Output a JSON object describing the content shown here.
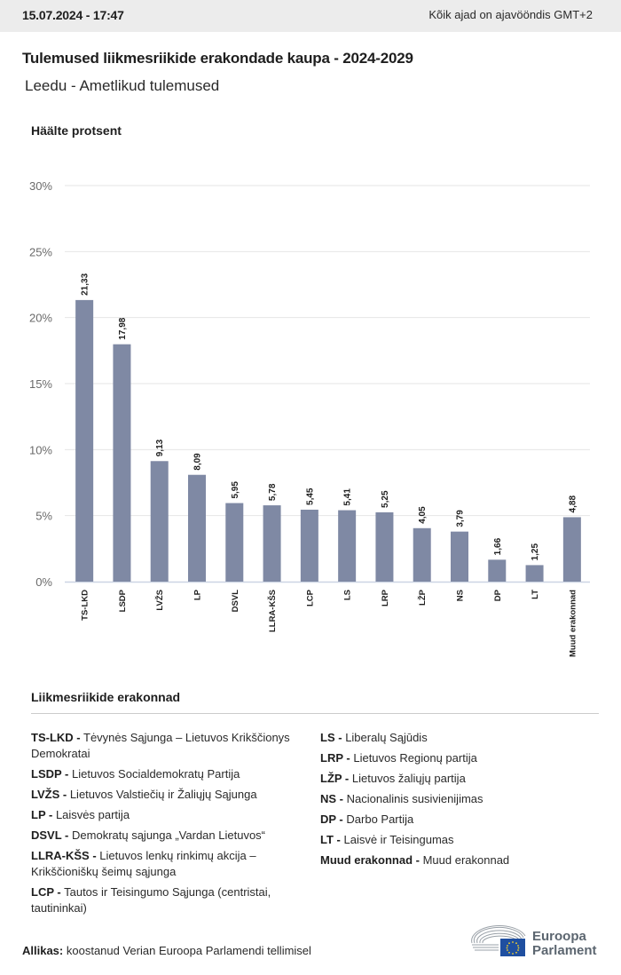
{
  "header": {
    "datetime": "15.07.2024 - 17:47",
    "timezone_note": "Kõik ajad on ajavööndis GMT+2"
  },
  "title": "Tulemused liikmesriikide erakondade kaupa - 2024-2029",
  "subtitle": "Leedu - Ametlikud tulemused",
  "colors": {
    "bar": "#7f89a4",
    "gridline": "#e6e6e6",
    "baseline": "#ccd4e4",
    "header_bg": "#ececec"
  },
  "chart_data": {
    "type": "bar",
    "title": "",
    "ylabel": "Häälte protsent",
    "xlabel": "",
    "ylim": [
      0,
      30
    ],
    "yticks": [
      0,
      5,
      10,
      15,
      20,
      25,
      30
    ],
    "ytick_labels": [
      "0%",
      "5%",
      "10%",
      "15%",
      "20%",
      "25%",
      "30%"
    ],
    "grid": true,
    "categories": [
      "TS-LKD",
      "LSDP",
      "LVŽS",
      "LP",
      "DSVL",
      "LLRA-KŠS",
      "LCP",
      "LS",
      "LRP",
      "LŽP",
      "NS",
      "DP",
      "LT",
      "Muud erakonnad"
    ],
    "values": [
      21.33,
      17.98,
      9.13,
      8.09,
      5.95,
      5.78,
      5.45,
      5.41,
      5.25,
      4.05,
      3.79,
      1.66,
      1.25,
      4.88
    ],
    "value_labels": [
      "21,33",
      "17,98",
      "9,13",
      "8,09",
      "5,95",
      "5,78",
      "5,45",
      "5,41",
      "5,25",
      "4,05",
      "3,79",
      "1,66",
      "1,25",
      "4,88"
    ]
  },
  "legend": {
    "title": "Liikmesriikide erakonnad",
    "left": [
      {
        "abbr": "TS-LKD -",
        "name": "Tėvynės Sąjunga – Lietuvos Krikščionys Demokratai"
      },
      {
        "abbr": "LSDP -",
        "name": "Lietuvos Socialdemokratų Partija"
      },
      {
        "abbr": "LVŽS -",
        "name": "Lietuvos Valstiečių ir Žaliųjų Sąjunga"
      },
      {
        "abbr": "LP -",
        "name": "Laisvės partija"
      },
      {
        "abbr": "DSVL -",
        "name": "Demokratų sąjunga „Vardan Lietuvos“"
      },
      {
        "abbr": "LLRA-KŠS -",
        "name": "Lietuvos lenkų rinkimų akcija – Krikščioniškų šeimų sąjunga"
      },
      {
        "abbr": "LCP -",
        "name": "Tautos ir Teisingumo Sąjunga (centristai, tautininkai)"
      }
    ],
    "right": [
      {
        "abbr": "LS -",
        "name": "Liberalų Sąjūdis"
      },
      {
        "abbr": "LRP -",
        "name": "Lietuvos Regionų partija"
      },
      {
        "abbr": "LŽP -",
        "name": "Lietuvos žaliųjų partija"
      },
      {
        "abbr": "NS -",
        "name": "Nacionalinis susivienijimas"
      },
      {
        "abbr": "DP -",
        "name": "Darbo Partija"
      },
      {
        "abbr": "LT -",
        "name": "Laisvė ir Teisingumas"
      },
      {
        "abbr": "Muud erakonnad -",
        "name": "Muud erakonnad"
      }
    ]
  },
  "source": {
    "label": "Allikas:",
    "text": "koostanud Verian Euroopa Parlamendi tellimisel"
  },
  "logo": {
    "line1": "Euroopa",
    "line2": "Parlament"
  }
}
